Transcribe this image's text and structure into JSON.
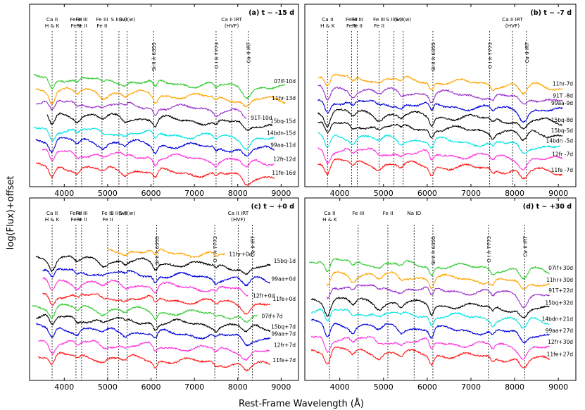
{
  "chart_data": {
    "type": "line",
    "xlabel": "Rest-Frame Wavelength (Å)",
    "ylabel": "log(Flux)+offset",
    "xlim": [
      3200,
      9400
    ],
    "xticks": [
      4000,
      5000,
      6000,
      7000,
      8000,
      9000
    ],
    "panels": [
      {
        "title": "(a) t ~ -15 d",
        "lines": [
          {
            "label": [
              "Ca II",
              "H & K"
            ],
            "x": 3720
          },
          {
            "label": [
              "Fe III",
              "Fe II"
            ],
            "x": 4270
          },
          {
            "label": [
              "Fe III",
              "Fe II"
            ],
            "x": 4400
          },
          {
            "label": [
              "Fe III",
              "Fe II"
            ],
            "x": 4870
          },
          {
            "label": [
              "S II(w)"
            ],
            "x": 5260
          },
          {
            "label": [
              "S II(w)"
            ],
            "x": 5450
          },
          {
            "label": [
              "Si II λ 6355"
            ],
            "x": 6060
          },
          {
            "label": [
              "O I λ 7773"
            ],
            "x": 7500
          },
          {
            "label": [
              "Ca II IRT",
              "(HVF)"
            ],
            "x": 7860
          },
          {
            "label": [
              "Ca II IRT"
            ],
            "x": 8240
          }
        ],
        "series": [
          {
            "name": "07if-10d",
            "color": "#33cc33",
            "x_start": 3300,
            "x_end": 9100,
            "offset": 7.0
          },
          {
            "name": "11hr-13d",
            "color": "#ffa500",
            "x_start": 3350,
            "x_end": 9100,
            "offset": 6.1
          },
          {
            "name": "91T-10d",
            "color": "#9933cc",
            "x_start": 3350,
            "x_end": 8200,
            "offset": 5.2
          },
          {
            "name": "15bq-15d",
            "color": "#000000",
            "x_start": 3600,
            "x_end": 8800,
            "offset": 4.3
          },
          {
            "name": "14bdn-15d",
            "color": "#00e5e5",
            "x_start": 3300,
            "x_end": 8850,
            "offset": 3.2
          },
          {
            "name": "99aa-11d",
            "color": "#0000dd",
            "x_start": 3350,
            "x_end": 8850,
            "offset": 2.4
          },
          {
            "name": "12fr-12d",
            "color": "#ff33dd",
            "x_start": 3500,
            "x_end": 8850,
            "offset": 1.5
          },
          {
            "name": "11fe-16d",
            "color": "#ff1a1a",
            "x_start": 3350,
            "x_end": 8850,
            "offset": 0.4
          }
        ]
      },
      {
        "title": "(b) t ~ -7 d",
        "lines": [
          {
            "label": [
              "Ca II",
              "H & K"
            ],
            "x": 3720
          },
          {
            "label": [
              "Fe III",
              "Fe II"
            ],
            "x": 4270
          },
          {
            "label": [
              "Fe III",
              "Fe II"
            ],
            "x": 4400
          },
          {
            "label": [
              "Fe III",
              "Fe II"
            ],
            "x": 4900
          },
          {
            "label": [
              "S II(w)"
            ],
            "x": 5240
          },
          {
            "label": [
              "S II(w)"
            ],
            "x": 5450
          },
          {
            "label": [
              "Si II λ 6355"
            ],
            "x": 6130
          },
          {
            "label": [
              "O I λ 7773"
            ],
            "x": 7430
          },
          {
            "label": [
              "Ca II IRT",
              "(HVF)"
            ],
            "x": 7950
          },
          {
            "label": [
              "Ca II IRT"
            ],
            "x": 8270
          }
        ],
        "series": [
          {
            "name": "11hr-7d",
            "color": "#ffa500",
            "x_start": 3500,
            "x_end": 9100,
            "offset": 7.1
          },
          {
            "name": "91T -8d",
            "color": "#9933cc",
            "x_start": 3500,
            "x_end": 9100,
            "offset": 6.2
          },
          {
            "name": "99aa-9d",
            "color": "#0000dd",
            "x_start": 3500,
            "x_end": 9100,
            "offset": 5.3
          },
          {
            "name": "15bq-8d",
            "color": "#000000",
            "x_start": 3500,
            "x_end": 9100,
            "offset": 4.5
          },
          {
            "name": "15bq-5d",
            "color": "#000000",
            "x_start": 3500,
            "x_end": 9100,
            "offset": 3.6
          },
          {
            "name": "14bdn -5d",
            "color": "#00e5e5",
            "x_start": 3500,
            "x_end": 9050,
            "offset": 2.7
          },
          {
            "name": "12fr -7d",
            "color": "#ff33dd",
            "x_start": 3500,
            "x_end": 9100,
            "offset": 1.7
          },
          {
            "name": "11fe -7d",
            "color": "#ff1a1a",
            "x_start": 3500,
            "x_end": 9100,
            "offset": 0.8
          }
        ]
      },
      {
        "title": "(c) t ~ +0 d",
        "lines": [
          {
            "label": [
              "Ca II",
              "H & K"
            ],
            "x": 3720
          },
          {
            "label": [
              "Fe III",
              "Fe II"
            ],
            "x": 4270
          },
          {
            "label": [
              "Fe III",
              "Fe II"
            ],
            "x": 4400
          },
          {
            "label": [
              "Fe III",
              "Fe II"
            ],
            "x": 5000
          },
          {
            "label": [
              "S II(w)"
            ],
            "x": 5250
          },
          {
            "label": [
              "S II(w)"
            ],
            "x": 5450
          },
          {
            "label": [
              "Si II λ 6355"
            ],
            "x": 6130
          },
          {
            "label": [
              "O I λ 7773"
            ],
            "x": 7470
          },
          {
            "label": [
              "Ca II IRT",
              "(HVF)"
            ],
            "x": 8010
          },
          {
            "label": [
              "Ca II IRT"
            ],
            "x": 8340
          }
        ],
        "series": [
          {
            "name": "11hr+0d",
            "color": "#ffa500",
            "x_start": 5000,
            "x_end": 7700,
            "offset": 8.8
          },
          {
            "name": "15bq-1d",
            "color": "#000000",
            "x_start": 3350,
            "x_end": 8750,
            "offset": 8.0
          },
          {
            "name": "99aa+0d",
            "color": "#0000dd",
            "x_start": 3500,
            "x_end": 8750,
            "offset": 7.1
          },
          {
            "name": "12fr+0d",
            "color": "#ff33dd",
            "x_start": 3500,
            "x_end": 8250,
            "offset": 6.3
          },
          {
            "name": "11fe+0d",
            "color": "#ff1a1a",
            "x_start": 3500,
            "x_end": 8750,
            "offset": 5.3
          },
          {
            "name": "07if+7d",
            "color": "#33cc33",
            "x_start": 3250,
            "x_end": 8450,
            "offset": 4.4
          },
          {
            "name": "15bq+7d",
            "color": "#000000",
            "x_start": 3350,
            "x_end": 8750,
            "offset": 3.6
          },
          {
            "name": "99aa+7d",
            "color": "#0000dd",
            "x_start": 3350,
            "x_end": 8750,
            "offset": 2.8
          },
          {
            "name": "12fr+7d",
            "color": "#ff33dd",
            "x_start": 3400,
            "x_end": 8750,
            "offset": 1.8
          },
          {
            "name": "11fe+7d",
            "color": "#ff1a1a",
            "x_start": 3400,
            "x_end": 8750,
            "offset": 0.8
          }
        ]
      },
      {
        "title": "(d) t ~ +30 d",
        "lines": [
          {
            "label": [
              "Ca II",
              "H & K"
            ],
            "x": 3770
          },
          {
            "label": [
              "Fe III"
            ],
            "x": 4420
          },
          {
            "label": [
              "Fe II"
            ],
            "x": 5100
          },
          {
            "label": [
              "Na ID"
            ],
            "x": 5700
          },
          {
            "label": [
              "Si II λ 6355"
            ],
            "x": 6130
          },
          {
            "label": [
              "O I λ 7773"
            ],
            "x": 7400
          },
          {
            "label": [
              "Ca II IRT"
            ],
            "x": 8230
          }
        ],
        "series": [
          {
            "name": "07if+30d",
            "color": "#33cc33",
            "x_start": 3300,
            "x_end": 8800,
            "offset": 7.8
          },
          {
            "name": "11hr+30d",
            "color": "#ffa500",
            "x_start": 3700,
            "x_end": 8800,
            "offset": 6.9
          },
          {
            "name": "91T+22d",
            "color": "#9933cc",
            "x_start": 3700,
            "x_end": 8800,
            "offset": 6.0
          },
          {
            "name": "15bq+32d",
            "color": "#000000",
            "x_start": 3350,
            "x_end": 8800,
            "offset": 4.9
          },
          {
            "name": "14bdn+21d",
            "color": "#00e5e5",
            "x_start": 3350,
            "x_end": 8800,
            "offset": 4.1
          },
          {
            "name": "99aa+27d",
            "color": "#0000dd",
            "x_start": 3350,
            "x_end": 8800,
            "offset": 3.1
          },
          {
            "name": "12fr+30d",
            "color": "#ff33dd",
            "x_start": 3350,
            "x_end": 8800,
            "offset": 2.1
          },
          {
            "name": "11fe+27d",
            "color": "#ff1a1a",
            "x_start": 3350,
            "x_end": 8800,
            "offset": 1.2
          }
        ]
      }
    ]
  }
}
